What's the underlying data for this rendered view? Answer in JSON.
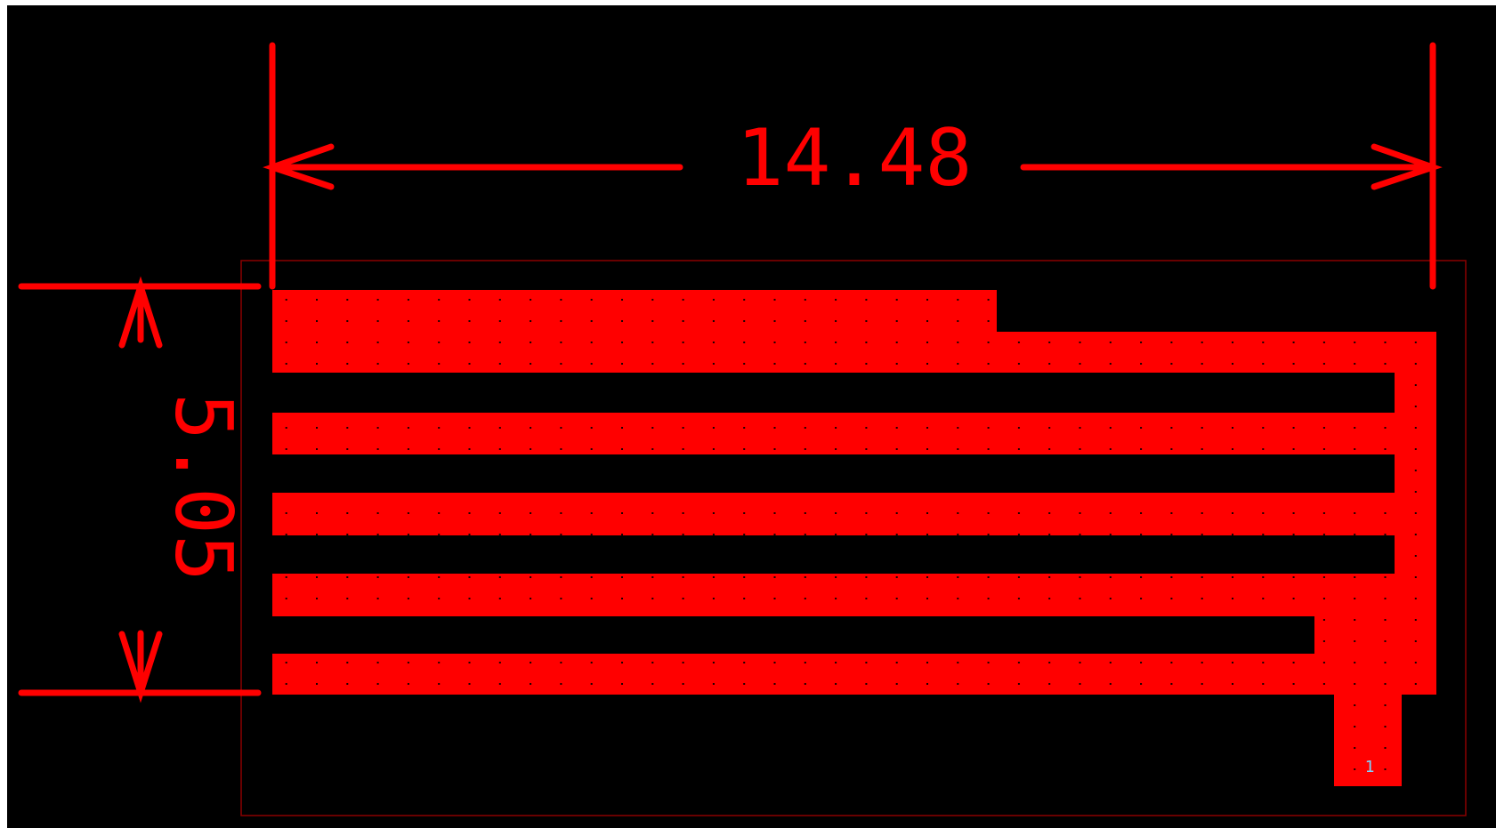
{
  "colors": {
    "canvas": "#000000",
    "copper": "#ff0000",
    "outline": "#8b0000",
    "grid": "#000000",
    "pad_label": "#7fd4ff"
  },
  "dimensions": {
    "width_label": "14.48",
    "height_label": "5.05"
  },
  "pad": {
    "number": "1"
  }
}
